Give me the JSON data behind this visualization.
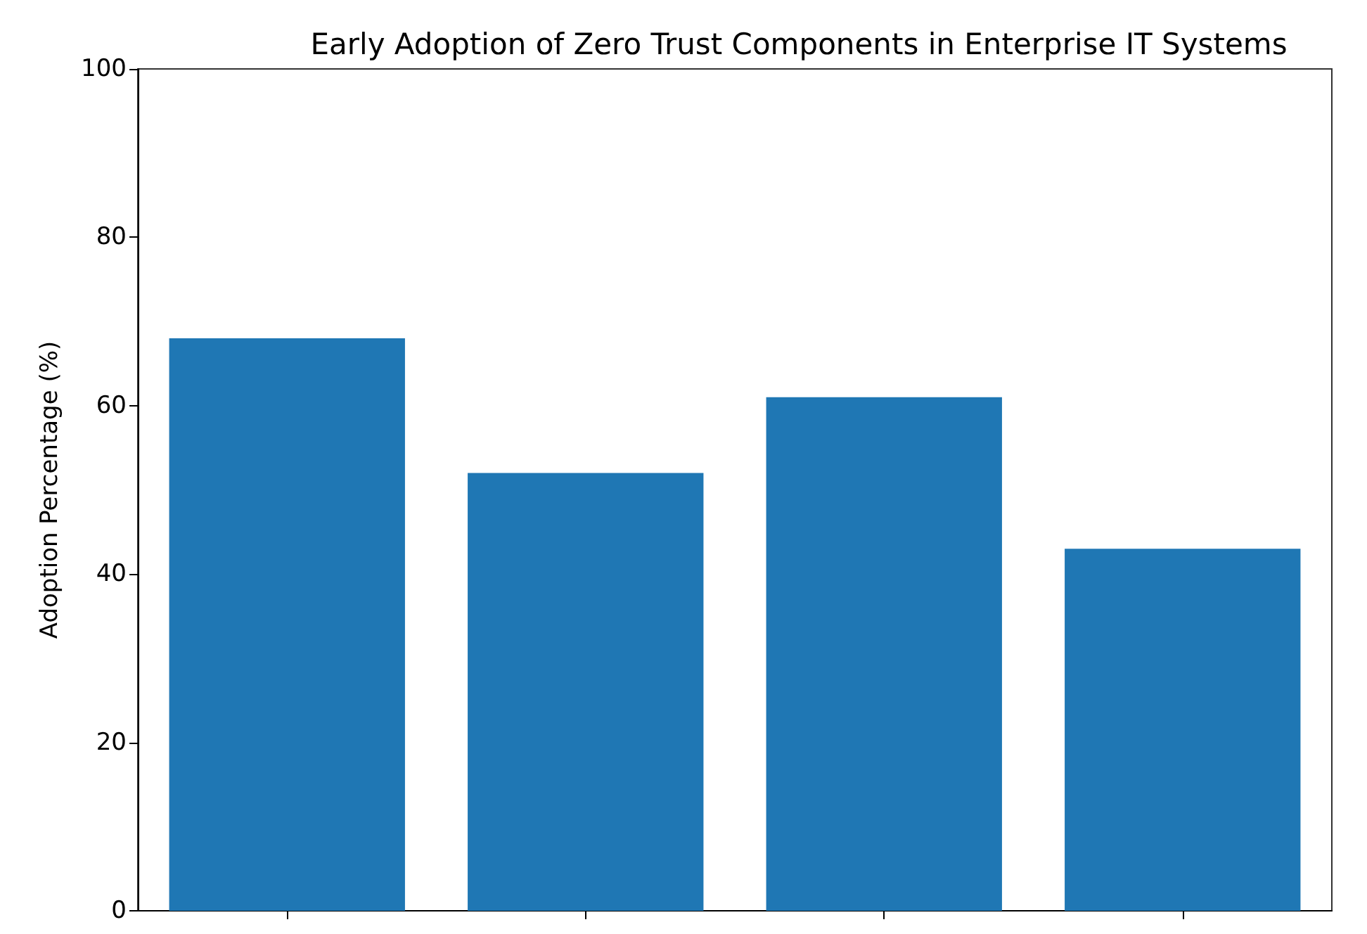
{
  "chart_data": {
    "type": "bar",
    "title": "Early Adoption of Zero Trust Components in Enterprise IT Systems",
    "ylabel": "Adoption Percentage (%)",
    "categories": [
      null,
      null,
      null,
      null
    ],
    "values": [
      68,
      52,
      61,
      43
    ],
    "color": "#1f77b4",
    "ylim": [
      0,
      100
    ],
    "yticks": [
      0,
      20,
      40,
      60,
      80,
      100
    ],
    "grid": false
  }
}
